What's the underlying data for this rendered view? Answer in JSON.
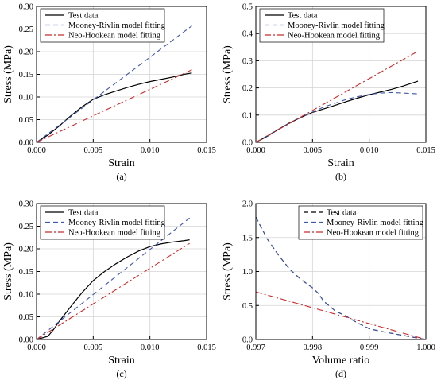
{
  "chart_data": [
    {
      "type": "line",
      "panel_label": "(a)",
      "xlabel": "Strain",
      "ylabel": "Stress (MPa)",
      "xlim": [
        0,
        0.015
      ],
      "ylim": [
        0,
        0.3
      ],
      "xticks": [
        "0.000",
        "0.005",
        "0.010",
        "0.015"
      ],
      "yticks": [
        "0.00",
        "0.05",
        "0.10",
        "0.15",
        "0.20",
        "0.25",
        "0.30"
      ],
      "xtick_values": [
        0,
        0.005,
        0.01,
        0.015
      ],
      "ytick_values": [
        0,
        0.05,
        0.1,
        0.15,
        0.2,
        0.25,
        0.3
      ],
      "grid": true,
      "legend": "top-left",
      "series": [
        {
          "name": "Test data",
          "style": "solid",
          "color": "#000000",
          "x": [
            0,
            0.001,
            0.002,
            0.003,
            0.004,
            0.005,
            0.006,
            0.007,
            0.008,
            0.009,
            0.01,
            0.011,
            0.012,
            0.013,
            0.0137
          ],
          "y": [
            0,
            0.016,
            0.036,
            0.058,
            0.078,
            0.095,
            0.105,
            0.113,
            0.121,
            0.128,
            0.134,
            0.139,
            0.144,
            0.15,
            0.153
          ]
        },
        {
          "name": "Mooney-Rivlin model fitting",
          "style": "dashed",
          "color": "#3d56a8",
          "x": [
            0,
            0.0137
          ],
          "y": [
            0,
            0.257
          ]
        },
        {
          "name": "Neo-Hookean model fitting",
          "style": "dashdot",
          "color": "#cc2a2a",
          "x": [
            0,
            0.0137
          ],
          "y": [
            0,
            0.16
          ]
        }
      ]
    },
    {
      "type": "line",
      "panel_label": "(b)",
      "xlabel": "Strain",
      "ylabel": "Stress (MPa)",
      "xlim": [
        0,
        0.015
      ],
      "ylim": [
        0,
        0.5
      ],
      "xticks": [
        "0.000",
        "0.005",
        "0.010",
        "0.015"
      ],
      "yticks": [
        "0.0",
        "0.1",
        "0.2",
        "0.3",
        "0.4",
        "0.5"
      ],
      "xtick_values": [
        0,
        0.005,
        0.01,
        0.015
      ],
      "ytick_values": [
        0,
        0.1,
        0.2,
        0.3,
        0.4,
        0.5
      ],
      "grid": true,
      "legend": "top-left",
      "series": [
        {
          "name": "Test data",
          "style": "solid",
          "color": "#000000",
          "x": [
            0,
            0.001,
            0.002,
            0.003,
            0.004,
            0.005,
            0.006,
            0.007,
            0.008,
            0.009,
            0.01,
            0.011,
            0.012,
            0.013,
            0.0143
          ],
          "y": [
            0,
            0.022,
            0.048,
            0.072,
            0.092,
            0.11,
            0.123,
            0.136,
            0.15,
            0.163,
            0.175,
            0.185,
            0.195,
            0.207,
            0.225
          ]
        },
        {
          "name": "Mooney-Rivlin model fitting",
          "style": "dashed",
          "color": "#3d56a8",
          "x": [
            0,
            0.002,
            0.004,
            0.006,
            0.008,
            0.009,
            0.01,
            0.011,
            0.012,
            0.013,
            0.0143
          ],
          "y": [
            0,
            0.048,
            0.092,
            0.13,
            0.158,
            0.168,
            0.176,
            0.181,
            0.183,
            0.181,
            0.178
          ]
        },
        {
          "name": "Neo-Hookean model fitting",
          "style": "dashdot",
          "color": "#cc2a2a",
          "x": [
            0,
            0.0143
          ],
          "y": [
            0,
            0.335
          ]
        }
      ]
    },
    {
      "type": "line",
      "panel_label": "(c)",
      "xlabel": "Strain",
      "ylabel": "Stress (MPa)",
      "xlim": [
        0,
        0.015
      ],
      "ylim": [
        0,
        0.3
      ],
      "xticks": [
        "0.000",
        "0.005",
        "0.010",
        "0.015"
      ],
      "yticks": [
        "0.00",
        "0.05",
        "0.10",
        "0.15",
        "0.20",
        "0.25",
        "0.30"
      ],
      "xtick_values": [
        0,
        0.005,
        0.01,
        0.015
      ],
      "ytick_values": [
        0,
        0.05,
        0.1,
        0.15,
        0.2,
        0.25,
        0.3
      ],
      "grid": true,
      "legend": "top-left",
      "series": [
        {
          "name": "Test data",
          "style": "solid",
          "color": "#000000",
          "x": [
            0,
            0.001,
            0.0015,
            0.002,
            0.003,
            0.004,
            0.005,
            0.006,
            0.007,
            0.008,
            0.009,
            0.01,
            0.011,
            0.012,
            0.013,
            0.0135
          ],
          "y": [
            0,
            0.007,
            0.022,
            0.04,
            0.072,
            0.103,
            0.13,
            0.15,
            0.167,
            0.182,
            0.195,
            0.205,
            0.211,
            0.215,
            0.218,
            0.22
          ]
        },
        {
          "name": "Mooney-Rivlin model fitting",
          "style": "dashed",
          "color": "#3d56a8",
          "x": [
            0,
            0.0135
          ],
          "y": [
            0,
            0.268
          ]
        },
        {
          "name": "Neo-Hookean model fitting",
          "style": "dashdot",
          "color": "#cc2a2a",
          "x": [
            0,
            0.0135
          ],
          "y": [
            0,
            0.212
          ]
        }
      ]
    },
    {
      "type": "line",
      "panel_label": "(d)",
      "xlabel": "Volume ratio",
      "ylabel": "Stress (MPa)",
      "xlim": [
        0.997,
        1.0
      ],
      "ylim": [
        0,
        2.0
      ],
      "xticks": [
        "0.997",
        "0.998",
        "0.999",
        "1.000"
      ],
      "yticks": [
        "0.0",
        "0.5",
        "1.0",
        "1.5",
        "2.0"
      ],
      "xtick_values": [
        0.997,
        0.998,
        0.999,
        1.0
      ],
      "ytick_values": [
        0,
        0.5,
        1.0,
        1.5,
        2.0
      ],
      "grid": true,
      "legend": "top-right",
      "series": [
        {
          "name": "Test data",
          "style": "dashed",
          "color": "#000000",
          "x": [
            0.997,
            0.9972,
            0.9974,
            0.9976,
            0.9978,
            0.9979,
            0.998,
            0.9981,
            0.9982,
            0.9984,
            0.9986,
            0.9988,
            0.999,
            0.9992,
            0.9994,
            0.9996,
            0.9998,
            1.0
          ],
          "y": [
            1.8,
            1.48,
            1.24,
            1.03,
            0.88,
            0.82,
            0.76,
            0.68,
            0.56,
            0.42,
            0.34,
            0.24,
            0.16,
            0.12,
            0.09,
            0.06,
            0.03,
            0.0
          ]
        },
        {
          "name": "Mooney-Rivlin model fitting",
          "style": "dashed",
          "color": "#3d56a8",
          "x": [
            0.997,
            0.9972,
            0.9974,
            0.9976,
            0.9978,
            0.9979,
            0.998,
            0.9981,
            0.9982,
            0.9984,
            0.9986,
            0.9988,
            0.999,
            0.9992,
            0.9994,
            0.9996,
            0.9998,
            1.0
          ],
          "y": [
            1.8,
            1.48,
            1.24,
            1.03,
            0.88,
            0.82,
            0.76,
            0.68,
            0.56,
            0.42,
            0.34,
            0.24,
            0.16,
            0.12,
            0.09,
            0.06,
            0.03,
            0.0
          ]
        },
        {
          "name": "Neo-Hookean model fitting",
          "style": "dashdot",
          "color": "#cc2a2a",
          "x": [
            0.997,
            1.0
          ],
          "y": [
            0.7,
            0.0
          ]
        }
      ]
    }
  ]
}
